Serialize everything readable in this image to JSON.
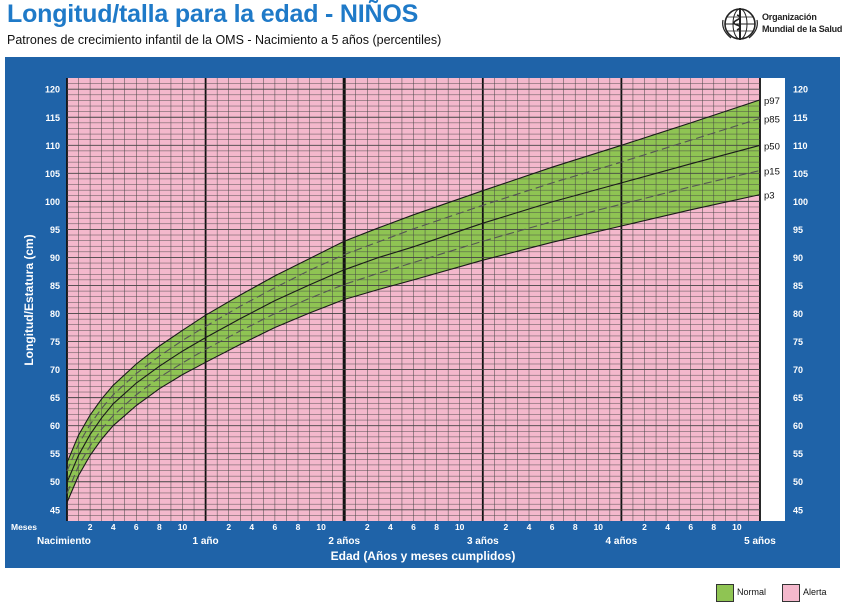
{
  "header": {
    "title": "Longitud/talla para la edad - NIÑOS",
    "subtitle": "Patrones de crecimiento infantil de la OMS - Nacimiento a 5 años (percentiles)",
    "org_line1": "Organización",
    "org_line2": "Mundial de la Salud",
    "logo_icon": "who-emblem-icon"
  },
  "colors": {
    "frame": "#1f63a8",
    "alert_fill": "#f4b8cc",
    "normal_fill": "#8fc453",
    "grid_line": "#444444",
    "title": "#1f7ac8"
  },
  "legend": {
    "items": [
      {
        "label": "Normal",
        "color": "#8fc453"
      },
      {
        "label": "Alerta",
        "color": "#f4b8cc"
      }
    ]
  },
  "chart_data": {
    "type": "line",
    "title": "Longitud/talla para la edad - NIÑOS",
    "ylabel": "Longitud/Estatura (cm)",
    "xlabel": "Edad (Años y meses cumplidos)",
    "x_units": "meses",
    "xlim": [
      0,
      60
    ],
    "ylim": [
      43,
      122
    ],
    "y_ticks": [
      45,
      50,
      55,
      60,
      65,
      70,
      75,
      80,
      85,
      90,
      95,
      100,
      105,
      110,
      115,
      120
    ],
    "month_tick_label": "Meses",
    "month_ticks": [
      "2",
      "4",
      "6",
      "8",
      "10"
    ],
    "year_ticks": [
      {
        "label": "Nacimiento",
        "month": 0
      },
      {
        "label": "1 año",
        "month": 12
      },
      {
        "label": "2 años",
        "month": 24
      },
      {
        "label": "3 años",
        "month": 36
      },
      {
        "label": "4 años",
        "month": 48
      },
      {
        "label": "5 años",
        "month": 60
      }
    ],
    "grid": true,
    "x": [
      0,
      1,
      2,
      3,
      4,
      6,
      8,
      10,
      12,
      15,
      18,
      21,
      24,
      27,
      30,
      36,
      42,
      48,
      54,
      60
    ],
    "series": [
      {
        "name": "p97",
        "style": "solid",
        "values": [
          53.4,
          58.3,
          61.9,
          64.8,
          67.2,
          71.0,
          74.2,
          77.0,
          79.7,
          83.3,
          86.7,
          89.8,
          92.9,
          95.3,
          97.6,
          101.9,
          106.1,
          110.0,
          114.0,
          118.1
        ]
      },
      {
        "name": "p85",
        "style": "dashed",
        "values": [
          51.9,
          56.7,
          60.2,
          63.1,
          65.5,
          69.3,
          72.4,
          75.2,
          77.7,
          81.3,
          84.6,
          87.7,
          90.5,
          92.8,
          95.1,
          99.3,
          103.3,
          107.0,
          110.9,
          114.8
        ]
      },
      {
        "name": "p50",
        "style": "solid",
        "values": [
          49.9,
          54.7,
          58.4,
          61.4,
          63.9,
          67.6,
          70.6,
          73.3,
          75.7,
          79.1,
          82.3,
          85.1,
          87.8,
          90.0,
          91.9,
          96.1,
          99.9,
          103.3,
          106.7,
          110.0
        ]
      },
      {
        "name": "p15",
        "style": "dashed",
        "values": [
          47.9,
          52.8,
          56.4,
          59.4,
          61.8,
          65.5,
          68.6,
          71.2,
          73.6,
          76.9,
          80.0,
          82.7,
          85.2,
          87.2,
          89.1,
          92.9,
          96.4,
          99.5,
          102.6,
          105.5
        ]
      },
      {
        "name": "p3",
        "style": "solid",
        "values": [
          46.3,
          51.1,
          54.7,
          57.6,
          60.0,
          63.6,
          66.6,
          69.1,
          71.3,
          74.5,
          77.5,
          80.1,
          82.5,
          84.3,
          86.0,
          89.5,
          92.7,
          95.6,
          98.5,
          101.2
        ]
      }
    ],
    "bands": [
      {
        "name": "Normal",
        "between": [
          "p3",
          "p97"
        ]
      },
      {
        "name": "Alerta",
        "region": "below p3 and above p97"
      }
    ]
  }
}
